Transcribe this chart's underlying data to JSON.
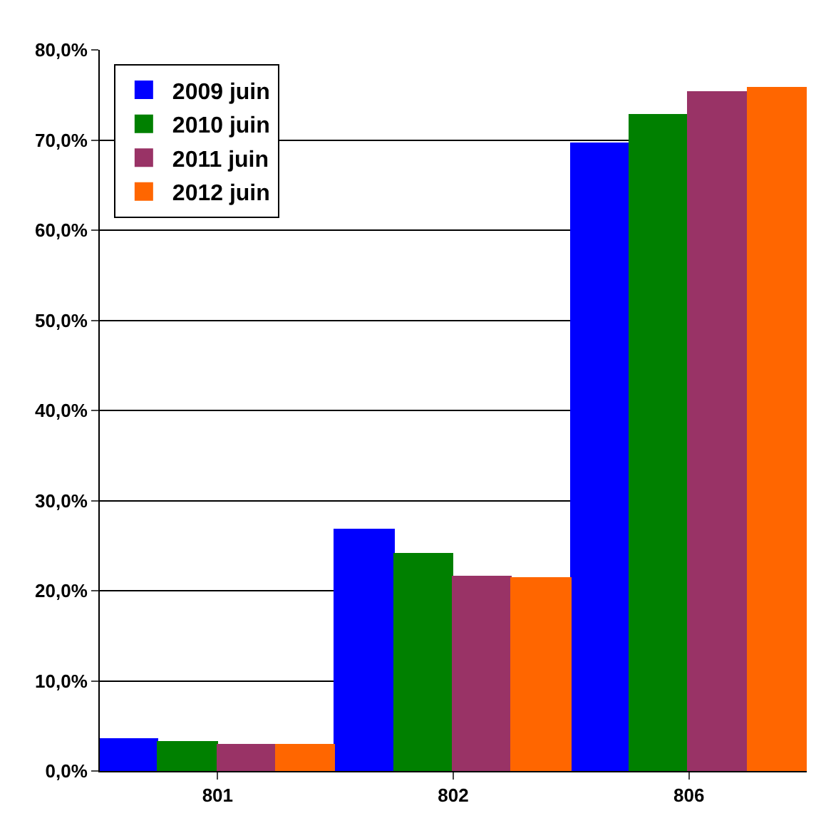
{
  "chart_data": {
    "type": "bar",
    "categories": [
      "801",
      "802",
      "806"
    ],
    "series": [
      {
        "name": "2009 juin",
        "color": "#0000ff",
        "values": [
          3.5,
          26.7,
          69.6
        ]
      },
      {
        "name": "2010 juin",
        "color": "#008000",
        "values": [
          3.1,
          24.1,
          72.8
        ]
      },
      {
        "name": "2011 juin",
        "color": "#993366",
        "values": [
          2.9,
          21.5,
          75.3
        ]
      },
      {
        "name": "2012 juin",
        "color": "#ff6600",
        "values": [
          2.8,
          21.3,
          75.7
        ]
      }
    ],
    "ylim": [
      0,
      80
    ],
    "yticks": [
      {
        "value": 0,
        "label": "0,0%"
      },
      {
        "value": 10,
        "label": "10,0%"
      },
      {
        "value": 20,
        "label": "20,0%"
      },
      {
        "value": 30,
        "label": "30,0%"
      },
      {
        "value": 40,
        "label": "40,0%"
      },
      {
        "value": 50,
        "label": "50,0%"
      },
      {
        "value": 60,
        "label": "60,0%"
      },
      {
        "value": 70,
        "label": "70,0%"
      },
      {
        "value": 80,
        "label": "80,0%"
      }
    ],
    "grid": "y",
    "legend": "top left"
  }
}
